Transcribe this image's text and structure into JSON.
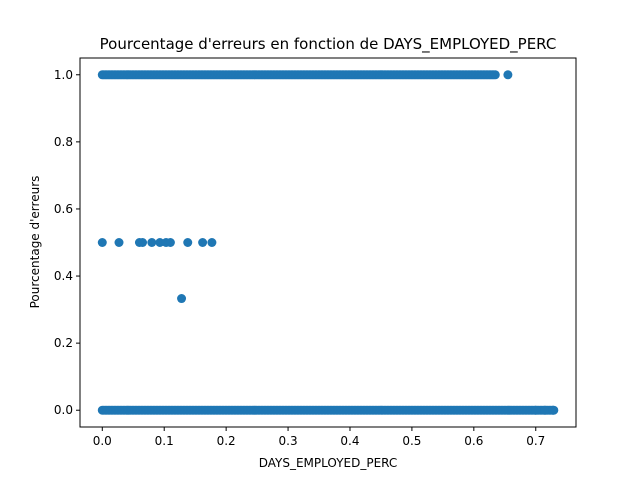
{
  "chart_data": {
    "type": "scatter",
    "title": "Pourcentage d'erreurs en fonction de DAYS_EMPLOYED_PERC",
    "xlabel": "DAYS_EMPLOYED_PERC",
    "ylabel": "Pourcentage d'erreurs",
    "xlim": [
      -0.036,
      0.765
    ],
    "ylim": [
      -0.05,
      1.05
    ],
    "xticks": [
      0.0,
      0.1,
      0.2,
      0.3,
      0.4,
      0.5,
      0.6,
      0.7
    ],
    "yticks": [
      0.0,
      0.2,
      0.4,
      0.6,
      0.8,
      1.0
    ],
    "xtick_labels": [
      "0.0",
      "0.1",
      "0.2",
      "0.3",
      "0.4",
      "0.5",
      "0.6",
      "0.7"
    ],
    "ytick_labels": [
      "0.0",
      "0.2",
      "0.4",
      "0.6",
      "0.8",
      "1.0"
    ],
    "grid": false,
    "legend": "none",
    "marker_color": "#1f77b4",
    "series": [
      {
        "x": [
          0.0,
          0.027,
          0.06,
          0.065,
          0.08,
          0.093,
          0.103,
          0.11,
          0.138,
          0.162,
          0.177,
          0.128
        ],
        "y": [
          0.5,
          0.5,
          0.5,
          0.5,
          0.5,
          0.5,
          0.5,
          0.5,
          0.5,
          0.5,
          0.5,
          0.333
        ]
      }
    ],
    "dense_segments": [
      {
        "y": 1.0,
        "x_start": 0.0,
        "x_end": 0.635
      },
      {
        "y": 0.0,
        "x_start": 0.0,
        "x_end": 0.73
      }
    ],
    "sparse_points": [
      {
        "x": 0.655,
        "y": 1.0
      },
      {
        "x": 0.7,
        "y": 0.0
      },
      {
        "x": 0.715,
        "y": 0.0
      },
      {
        "x": 0.728,
        "y": 0.0
      }
    ]
  }
}
